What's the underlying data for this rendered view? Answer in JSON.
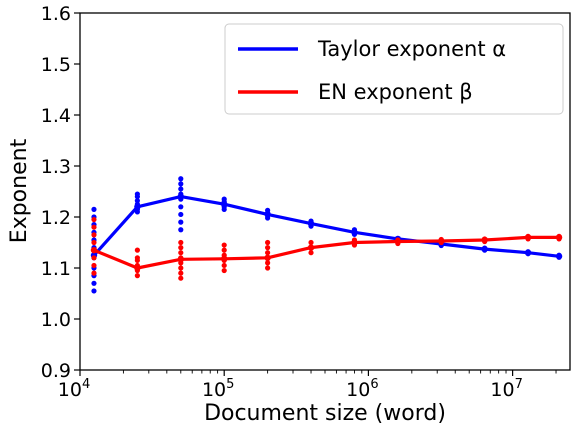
{
  "chart_data": {
    "type": "line",
    "xlabel": "Document size (word)",
    "ylabel": "Exponent",
    "xscale": "log",
    "xlim": [
      10000,
      25000000
    ],
    "ylim": [
      0.9,
      1.6
    ],
    "x_ticks": [
      {
        "value": 10000,
        "base": "10",
        "exp": "4"
      },
      {
        "value": 100000,
        "base": "10",
        "exp": "5"
      },
      {
        "value": 1000000,
        "base": "10",
        "exp": "6"
      },
      {
        "value": 10000000,
        "base": "10",
        "exp": "7"
      }
    ],
    "y_ticks": [
      "0.9",
      "1.0",
      "1.1",
      "1.2",
      "1.3",
      "1.4",
      "1.5",
      "1.6"
    ],
    "legend_position": "top-right",
    "series": [
      {
        "name": "Taylor exponent α",
        "color": "#0000ff",
        "x": [
          12500,
          25000,
          50000,
          100000,
          200000,
          400000,
          800000,
          1600000,
          3200000,
          6400000,
          12800000,
          21000000
        ],
        "y": [
          1.125,
          1.22,
          1.24,
          1.225,
          1.205,
          1.187,
          1.17,
          1.157,
          1.147,
          1.137,
          1.13,
          1.123
        ],
        "scatter": [
          {
            "x": 12500,
            "y": [
              1.055,
              1.07,
              1.085,
              1.1,
              1.12,
              1.14,
              1.155,
              1.17,
              1.185,
              1.2,
              1.215
            ]
          },
          {
            "x": 25000,
            "y": [
              1.21,
              1.215,
              1.22,
              1.225,
              1.232,
              1.24,
              1.245
            ]
          },
          {
            "x": 50000,
            "y": [
              1.175,
              1.19,
              1.205,
              1.22,
              1.235,
              1.245,
              1.255,
              1.265,
              1.275
            ]
          },
          {
            "x": 100000,
            "y": [
              1.215,
              1.22,
              1.225,
              1.23,
              1.235
            ]
          },
          {
            "x": 200000,
            "y": [
              1.198,
              1.203,
              1.208,
              1.213
            ]
          },
          {
            "x": 400000,
            "y": [
              1.182,
              1.187,
              1.192
            ]
          },
          {
            "x": 800000,
            "y": [
              1.166,
              1.171,
              1.175
            ]
          },
          {
            "x": 1600000,
            "y": [
              1.154,
              1.158
            ]
          },
          {
            "x": 3200000,
            "y": [
              1.144,
              1.148
            ]
          },
          {
            "x": 6400000,
            "y": [
              1.135,
              1.139
            ]
          },
          {
            "x": 12800000,
            "y": [
              1.128,
              1.132
            ]
          },
          {
            "x": 21000000,
            "y": [
              1.121,
              1.125
            ]
          }
        ]
      },
      {
        "name": "EN exponent β",
        "color": "#ff0000",
        "x": [
          12500,
          25000,
          50000,
          100000,
          200000,
          400000,
          800000,
          1600000,
          3200000,
          6400000,
          12800000,
          21000000
        ],
        "y": [
          1.135,
          1.1,
          1.117,
          1.118,
          1.12,
          1.14,
          1.15,
          1.152,
          1.153,
          1.155,
          1.16,
          1.16
        ],
        "scatter": [
          {
            "x": 12500,
            "y": [
              1.09,
              1.105,
              1.12,
              1.135,
              1.15,
              1.165,
              1.18,
              1.195
            ]
          },
          {
            "x": 25000,
            "y": [
              1.085,
              1.095,
              1.105,
              1.115,
              1.12,
              1.135
            ]
          },
          {
            "x": 50000,
            "y": [
              1.08,
              1.09,
              1.1,
              1.11,
              1.12,
              1.13,
              1.14,
              1.15
            ]
          },
          {
            "x": 100000,
            "y": [
              1.095,
              1.105,
              1.115,
              1.125,
              1.135,
              1.145
            ]
          },
          {
            "x": 200000,
            "y": [
              1.1,
              1.11,
              1.12,
              1.13,
              1.14,
              1.15
            ]
          },
          {
            "x": 400000,
            "y": [
              1.13,
              1.14,
              1.15
            ]
          },
          {
            "x": 800000,
            "y": [
              1.145,
              1.15,
              1.155
            ]
          },
          {
            "x": 1600000,
            "y": [
              1.148,
              1.155
            ]
          },
          {
            "x": 3200000,
            "y": [
              1.15,
              1.156
            ]
          },
          {
            "x": 6400000,
            "y": [
              1.152,
              1.157
            ]
          },
          {
            "x": 12800000,
            "y": [
              1.157,
              1.162
            ]
          },
          {
            "x": 21000000,
            "y": [
              1.157,
              1.162
            ]
          }
        ]
      }
    ]
  }
}
